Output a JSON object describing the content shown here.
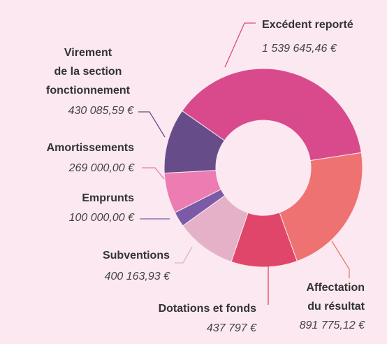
{
  "chart_data": {
    "type": "donut",
    "categories": [
      "Excédent reporté",
      "Affectation\ndu résultat",
      "Dotations et fonds",
      "Subventions",
      "Emprunts",
      "Amortissements",
      "Virement\nde la section\nfonctionnement"
    ],
    "values": [
      1539645.46,
      891775.12,
      437797,
      400163.93,
      100000,
      269000,
      430085.59
    ],
    "value_labels": [
      "1 539 645,46 €",
      "891 775,12 €",
      "437 797 €",
      "400 163,93 €",
      "100 000,00 €",
      "269 000,00 €",
      "430 085,59 €"
    ],
    "colors": [
      "#d94a8c",
      "#ef7272",
      "#e0456a",
      "#e4b1c8",
      "#7b5aa6",
      "#ec7cb1",
      "#664d8a"
    ]
  }
}
